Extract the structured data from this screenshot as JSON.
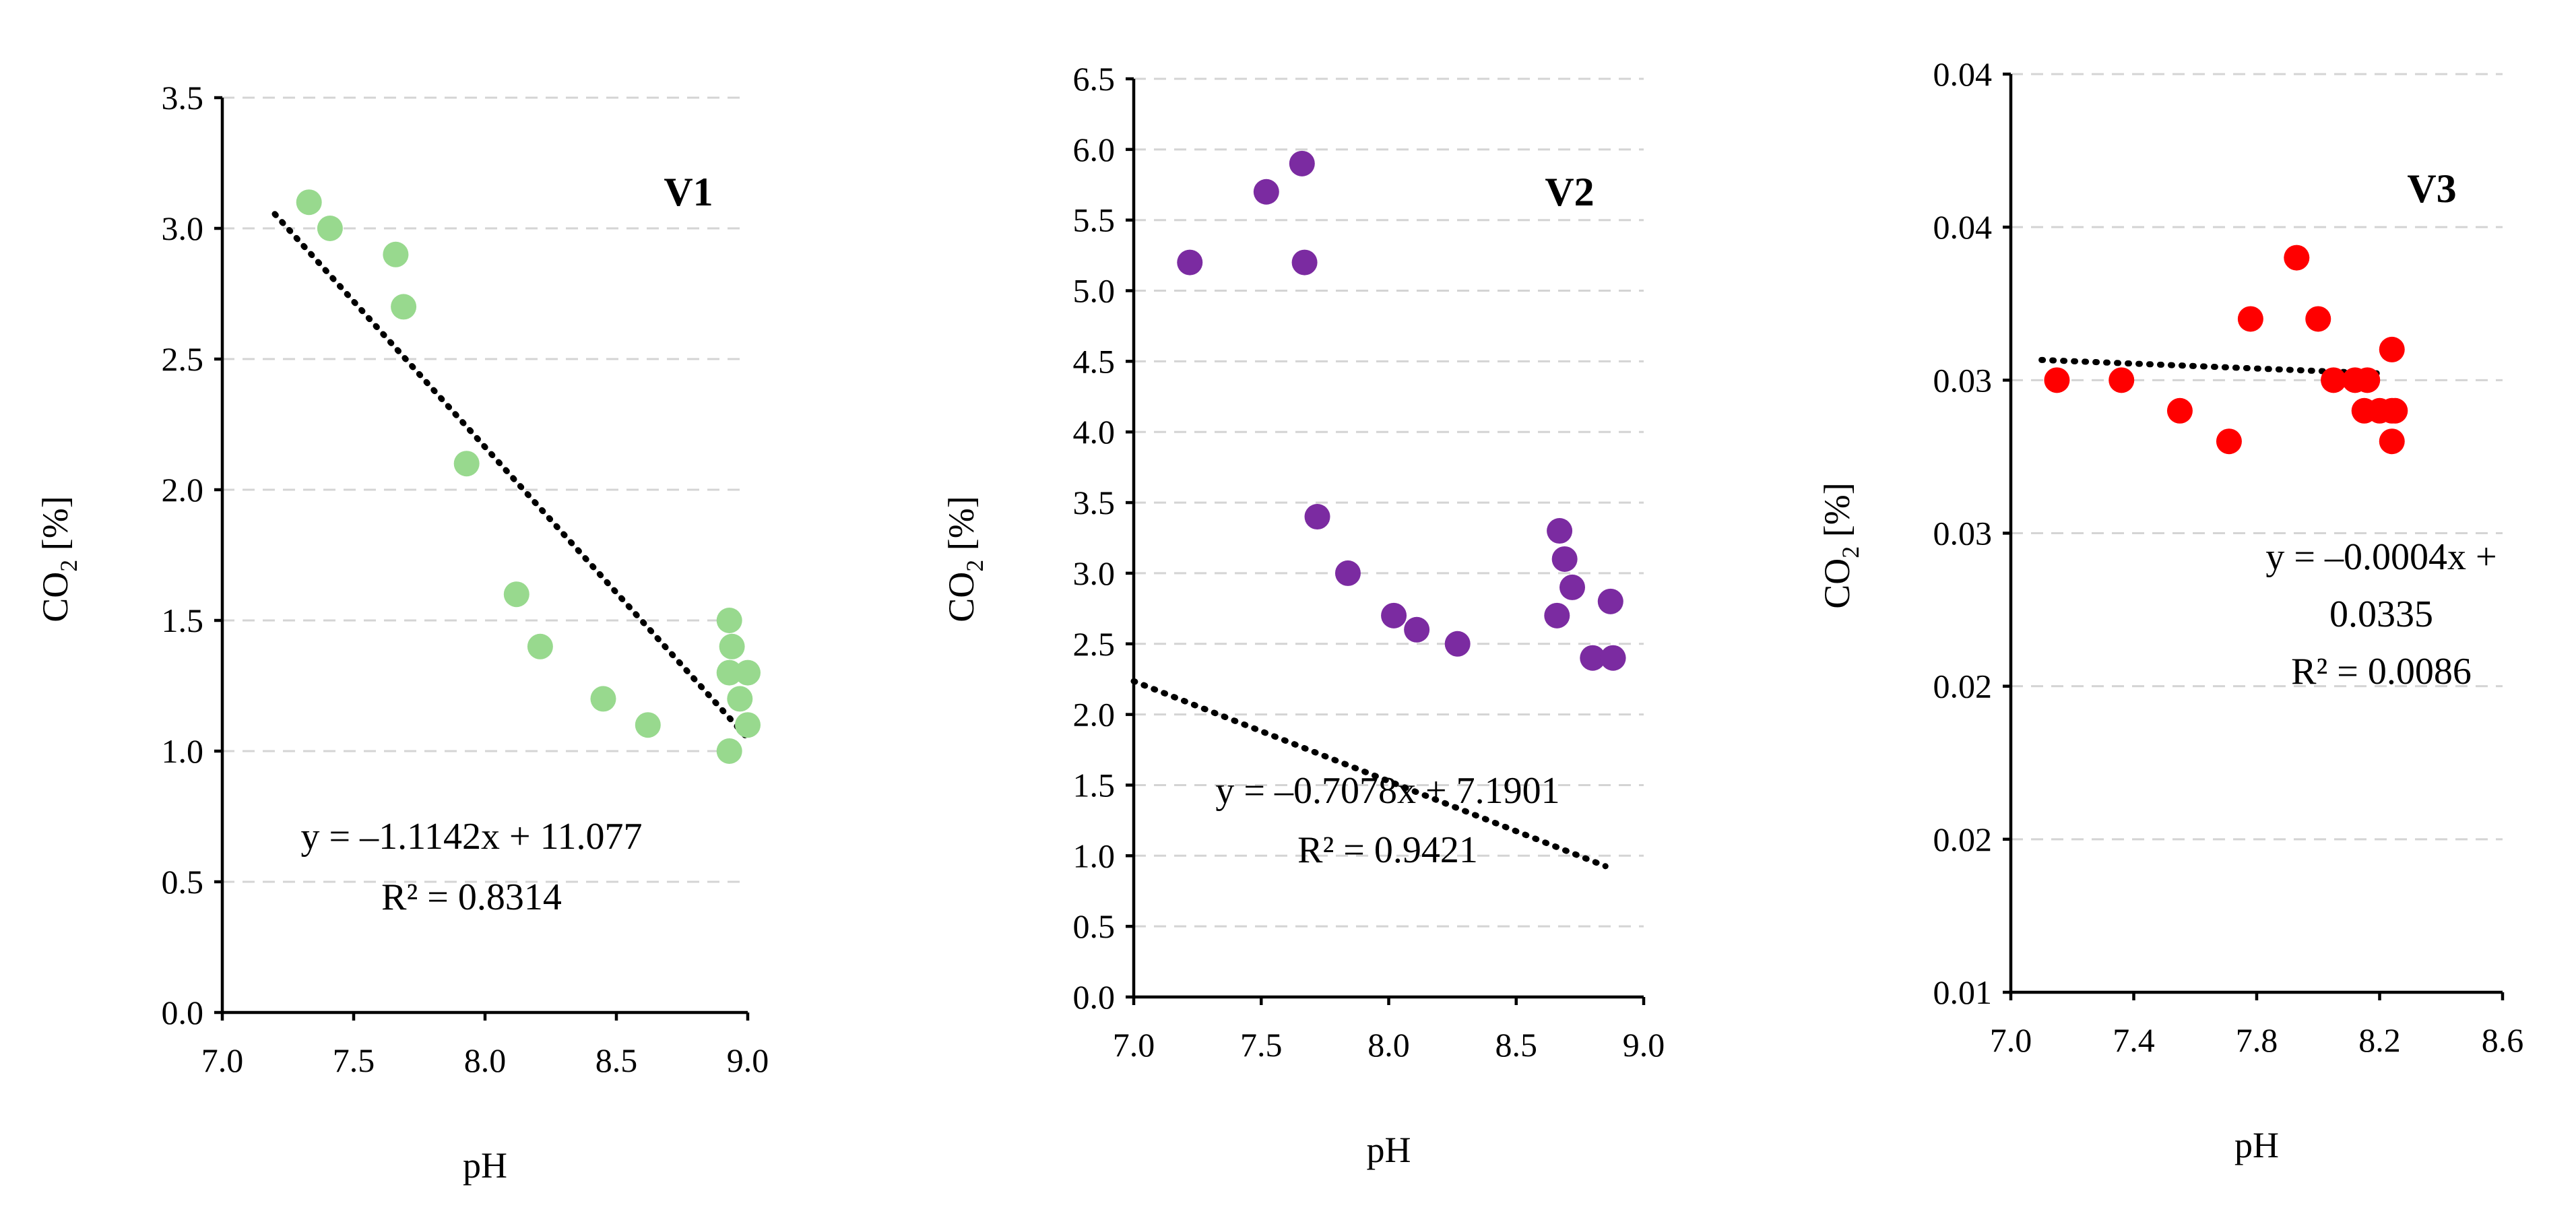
{
  "chart_data": [
    {
      "type": "scatter",
      "title": "V1",
      "xlabel": "pH",
      "ylabel": "CO",
      "ylabel_subscript": "2",
      "ylabel_suffix": " [%]",
      "xlim": [
        7.0,
        9.0
      ],
      "ylim": [
        0.0,
        3.5
      ],
      "xticks": [
        7.0,
        7.5,
        8.0,
        8.5,
        9.0
      ],
      "xtick_labels": [
        "7.0",
        "7.5",
        "8.0",
        "8.5",
        "9.0"
      ],
      "yticks": [
        0.0,
        0.5,
        1.0,
        1.5,
        2.0,
        2.5,
        3.0,
        3.5
      ],
      "ytick_labels": [
        "0.0",
        "0.5",
        "1.0",
        "1.5",
        "2.0",
        "2.5",
        "3.0",
        "3.5"
      ],
      "grid": true,
      "color": "#98d98e",
      "x": [
        7.33,
        7.41,
        7.66,
        7.69,
        7.93,
        8.12,
        8.21,
        8.45,
        8.62,
        8.93,
        8.94,
        8.93,
        8.93,
        8.97,
        9.0,
        9.0
      ],
      "y": [
        3.1,
        3.0,
        2.9,
        2.7,
        2.1,
        1.6,
        1.4,
        1.2,
        1.1,
        1.5,
        1.4,
        1.3,
        1.0,
        1.2,
        1.3,
        1.1
      ],
      "trendline": {
        "x": [
          7.2,
          9.0
        ],
        "slope": -1.1142,
        "intercept": 11.077
      },
      "equation": [
        "y = –1.1142x + 11.077",
        "R² = 0.8314"
      ]
    },
    {
      "type": "scatter",
      "title": "V2",
      "xlabel": "pH",
      "ylabel": "CO",
      "ylabel_subscript": "2",
      "ylabel_suffix": " [%]",
      "xlim": [
        7.0,
        9.0
      ],
      "ylim": [
        0.0,
        6.5
      ],
      "xticks": [
        7.0,
        7.5,
        8.0,
        8.5,
        9.0
      ],
      "xtick_labels": [
        "7.0",
        "7.5",
        "8.0",
        "8.5",
        "9.0"
      ],
      "yticks": [
        0.0,
        0.5,
        1.0,
        1.5,
        2.0,
        2.5,
        3.0,
        3.5,
        4.0,
        4.5,
        5.0,
        5.5,
        6.0,
        6.5
      ],
      "ytick_labels": [
        "0.0",
        "0.5",
        "1.0",
        "1.5",
        "2.0",
        "2.5",
        "3.0",
        "3.5",
        "4.0",
        "4.5",
        "5.0",
        "5.5",
        "6.0",
        "6.5"
      ],
      "grid": true,
      "color": "#7b2ba1",
      "x": [
        7.22,
        7.52,
        7.66,
        7.67,
        7.72,
        7.84,
        8.02,
        8.11,
        8.27,
        8.66,
        8.67,
        8.69,
        8.72,
        8.8,
        8.87,
        8.88
      ],
      "y": [
        5.2,
        5.7,
        5.9,
        5.2,
        3.4,
        3.0,
        2.7,
        2.6,
        2.5,
        2.7,
        3.3,
        3.1,
        2.9,
        2.4,
        2.8,
        2.4
      ],
      "trendline": {
        "x": [
          7.0,
          8.85
        ],
        "slope": -0.7078,
        "intercept": 7.1901
      },
      "equation": [
        "y = –0.7078x + 7.1901",
        "R² = 0.9421"
      ]
    },
    {
      "type": "scatter",
      "title": "V3",
      "xlabel": "pH",
      "ylabel": "CO",
      "ylabel_subscript": "2",
      "ylabel_suffix": " [%]",
      "xlim": [
        7.0,
        8.6
      ],
      "ylim": [
        0.01,
        0.04
      ],
      "xticks": [
        7.0,
        7.4,
        7.8,
        8.2,
        8.6
      ],
      "xtick_labels": [
        "7.0",
        "7.4",
        "7.8",
        "8.2",
        "8.6"
      ],
      "yticks": [
        0.01,
        0.015,
        0.02,
        0.025,
        0.03,
        0.035,
        0.04,
        0.045
      ],
      "ytick_labels": [
        "0.01",
        "0.02",
        "0.02",
        "0.03",
        "0.03",
        "0.04",
        "0.04",
        "0.04"
      ],
      "grid": true,
      "color": "#ff0000",
      "x": [
        7.15,
        7.36,
        7.55,
        7.71,
        7.78,
        7.93,
        8.0,
        8.05,
        8.12,
        8.15,
        8.16,
        8.2,
        8.24,
        8.24,
        8.24,
        8.25
      ],
      "y": [
        0.03,
        0.03,
        0.029,
        0.028,
        0.032,
        0.034,
        0.032,
        0.03,
        0.03,
        0.029,
        0.03,
        0.029,
        0.031,
        0.029,
        0.028,
        0.029
      ],
      "trendline": {
        "x": [
          7.1,
          8.2
        ],
        "slope": -0.0004,
        "intercept": 0.0335
      },
      "equation": [
        "y = –0.0004x +",
        "0.0335",
        "R² = 0.0086"
      ]
    }
  ]
}
